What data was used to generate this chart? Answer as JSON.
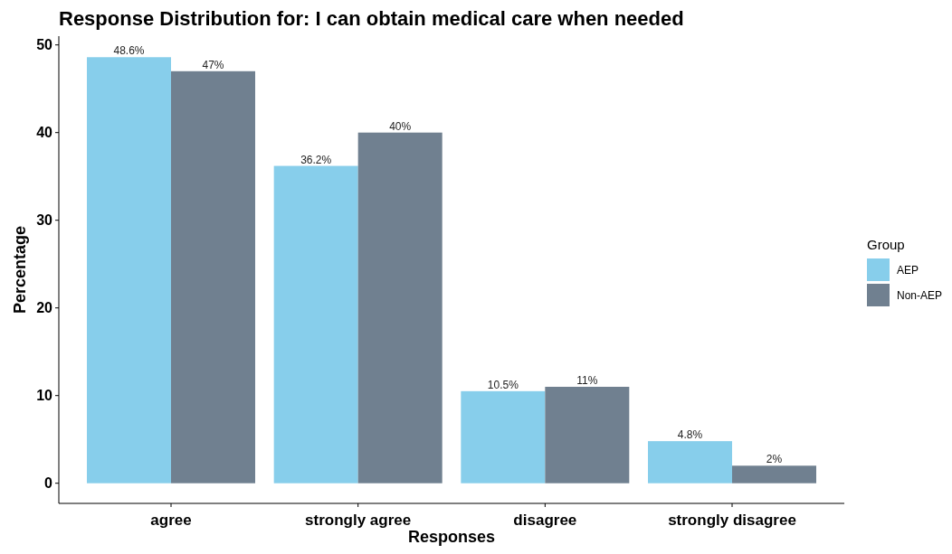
{
  "chart_data": {
    "type": "bar",
    "title": "Response Distribution for: I can obtain medical care when needed",
    "xlabel": "Responses",
    "ylabel": "Percentage",
    "legend_title": "Group",
    "legend": "right",
    "grid": false,
    "categories": [
      "agree",
      "strongly agree",
      "disagree",
      "strongly disagree"
    ],
    "series": [
      {
        "name": "AEP",
        "color": "#87ceeb",
        "values": [
          48.6,
          36.2,
          10.5,
          4.8
        ],
        "value_labels": [
          "48.6%",
          "36.2%",
          "10.5%",
          "4.8%"
        ]
      },
      {
        "name": "Non-AEP",
        "color": "#708090",
        "values": [
          47,
          40,
          11,
          2
        ],
        "value_labels": [
          "47%",
          "40%",
          "11%",
          "2%"
        ]
      }
    ],
    "ylim": [
      -2.3,
      51
    ],
    "yticks": [
      0,
      10,
      20,
      30,
      40,
      50
    ]
  }
}
